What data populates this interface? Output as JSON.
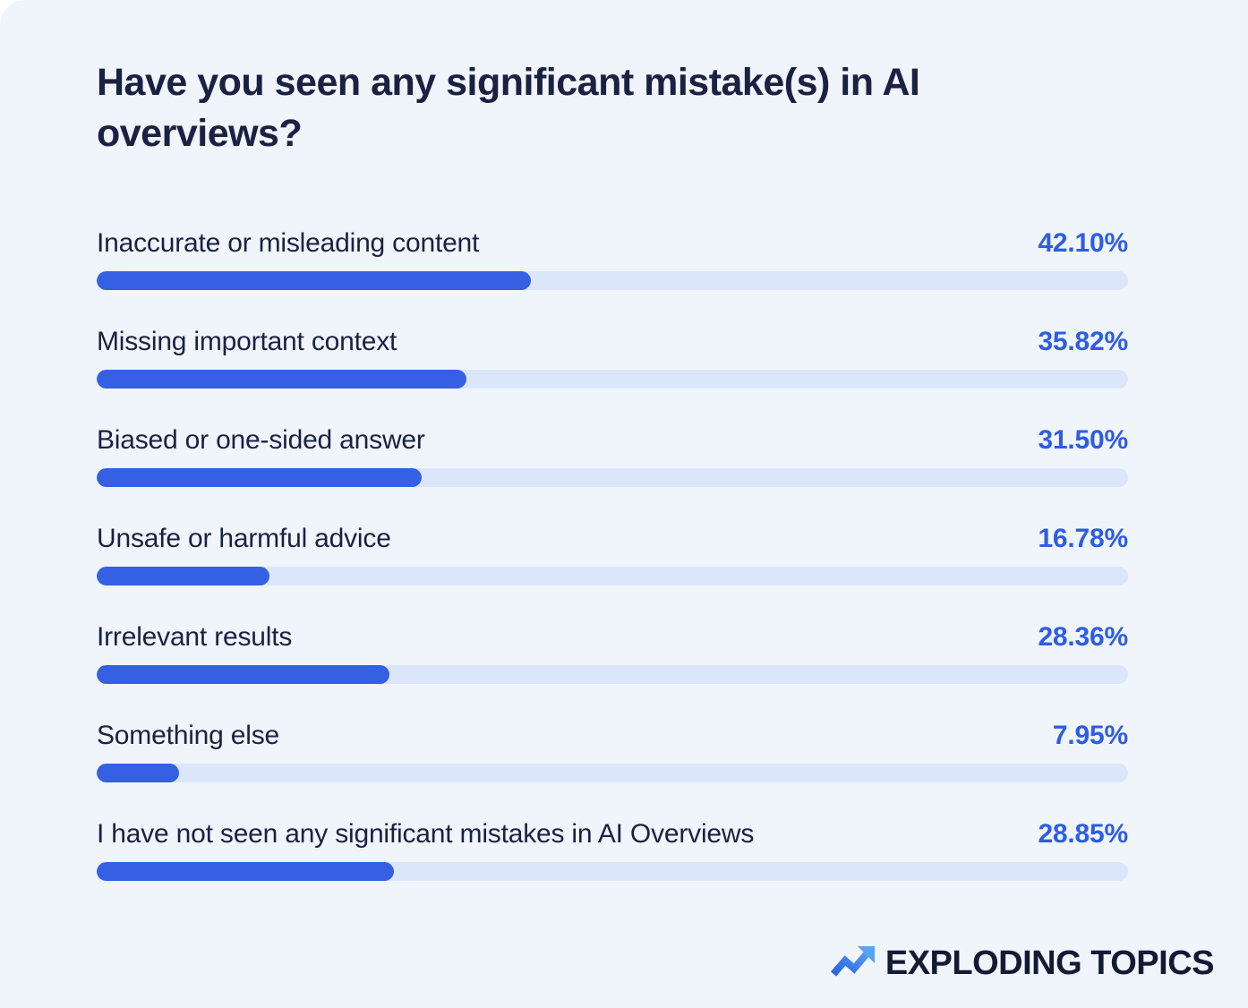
{
  "chart_data": {
    "type": "bar",
    "orientation": "horizontal",
    "title": "Have you seen any significant mistake(s) in AI overviews?",
    "categories": [
      "Inaccurate or misleading content",
      "Missing important context",
      "Biased or one-sided answer",
      "Unsafe or harmful advice",
      "Irrelevant results",
      "Something else",
      "I have not seen any significant mistakes in AI Overviews"
    ],
    "values": [
      42.1,
      35.82,
      31.5,
      16.78,
      28.36,
      7.95,
      28.85
    ],
    "value_labels": [
      "42.10%",
      "35.82%",
      "31.50%",
      "16.78%",
      "28.36%",
      "7.95%",
      "28.85%"
    ],
    "xlim": [
      0,
      100
    ],
    "grid": false,
    "legend": "none",
    "colors": {
      "bar_fill": "#3560E3",
      "bar_track": "#DBE6FB",
      "value_text": "#2E5CE6",
      "label_text": "#1A2142",
      "background": "#EFF5FA"
    }
  },
  "branding": {
    "logo_text": "EXPLODING TOPICS",
    "logo_icon": "trending-up-arrow-icon",
    "logo_color": "#141A33",
    "icon_gradient": [
      "#2B63D9",
      "#57A4F3"
    ]
  }
}
